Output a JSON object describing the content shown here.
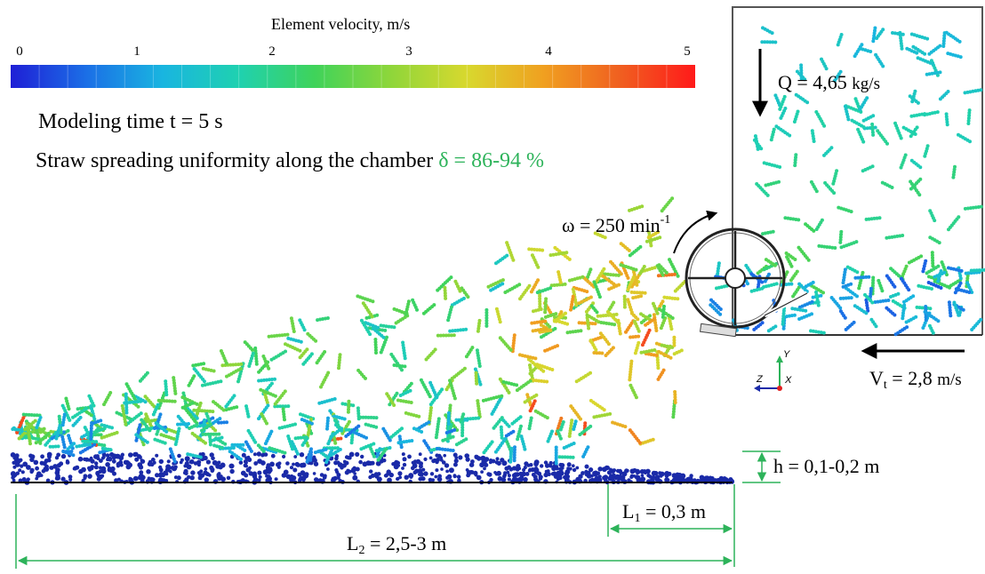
{
  "colorbar": {
    "title": "Element velocity, m/s",
    "min": 0,
    "max": 5,
    "ticks": [
      "0",
      "1",
      "2",
      "3",
      "4",
      "5"
    ],
    "colors": [
      "#1f1fd6",
      "#1b6fe6",
      "#19b5e0",
      "#1fd1b0",
      "#3fd35a",
      "#8fd63a",
      "#d8d82e",
      "#f0a020",
      "#f06020",
      "#ff1a1a"
    ]
  },
  "info": {
    "modeling_time": "Modeling time t = 5 s",
    "uniformity_label": "Straw spreading uniformity along the chamber",
    "uniformity_value": "δ = 86-94 %"
  },
  "annotations": {
    "omega_text": "ω = 250 min",
    "omega_sup": "-1",
    "q_text": "Q = 4,65",
    "q_unit": "kg/s",
    "vt_main": "V",
    "vt_sub": "t",
    "vt_value": " = 2,8",
    "vt_unit": "m/s",
    "h_text": "h = 0,1-0,2 m",
    "l1_main": "L",
    "l1_sub": "1",
    "l1_value": " = 0,3 m",
    "l2_main": "L",
    "l2_sub": "2",
    "l2_value": " = 2,5-3 m",
    "axis_y": "Y",
    "axis_z": "Z",
    "axis_x": "X"
  },
  "colors": {
    "dimension_green": "#2db35a",
    "floor_blue": "#1a2aa8",
    "arrow_black": "#000000"
  }
}
